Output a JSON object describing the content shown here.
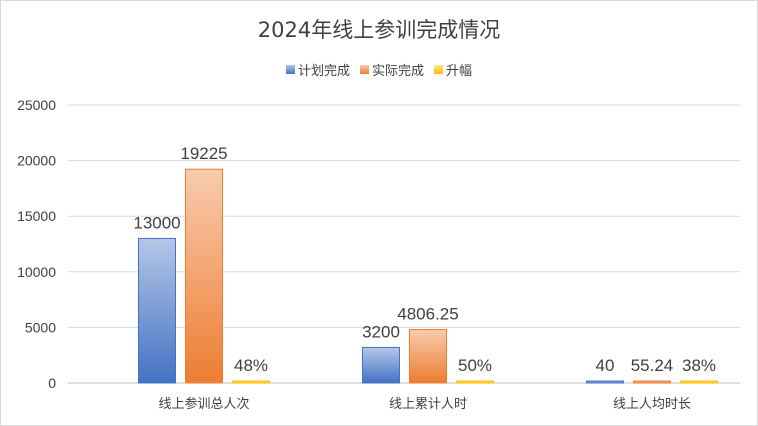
{
  "chart_data": {
    "type": "bar",
    "title": "2024年线上参训完成情况",
    "categories": [
      "线上参训总人次",
      "线上累计人时",
      "线上人均时长"
    ],
    "series": [
      {
        "name": "计划完成",
        "values": [
          13000,
          3200,
          40
        ],
        "labels": [
          "13000",
          "3200",
          "40"
        ],
        "color": "#4472c4",
        "color_light": "#b4c7e7"
      },
      {
        "name": "实际完成",
        "values": [
          19225,
          4806.25,
          55.24
        ],
        "labels": [
          "19225",
          "4806.25",
          "55.24"
        ],
        "color": "#ed7d31",
        "color_light": "#f8cbad"
      },
      {
        "name": "升幅",
        "values": [
          0.48,
          0.5,
          0.38
        ],
        "labels": [
          "48%",
          "50%",
          "38%"
        ],
        "color": "#ffc000",
        "color_light": "#ffe699"
      }
    ],
    "ylim": [
      0,
      25000
    ],
    "yticks": [
      0,
      5000,
      10000,
      15000,
      20000,
      25000
    ],
    "xlabel": "",
    "ylabel": "",
    "grid": true,
    "legend_position": "top"
  }
}
